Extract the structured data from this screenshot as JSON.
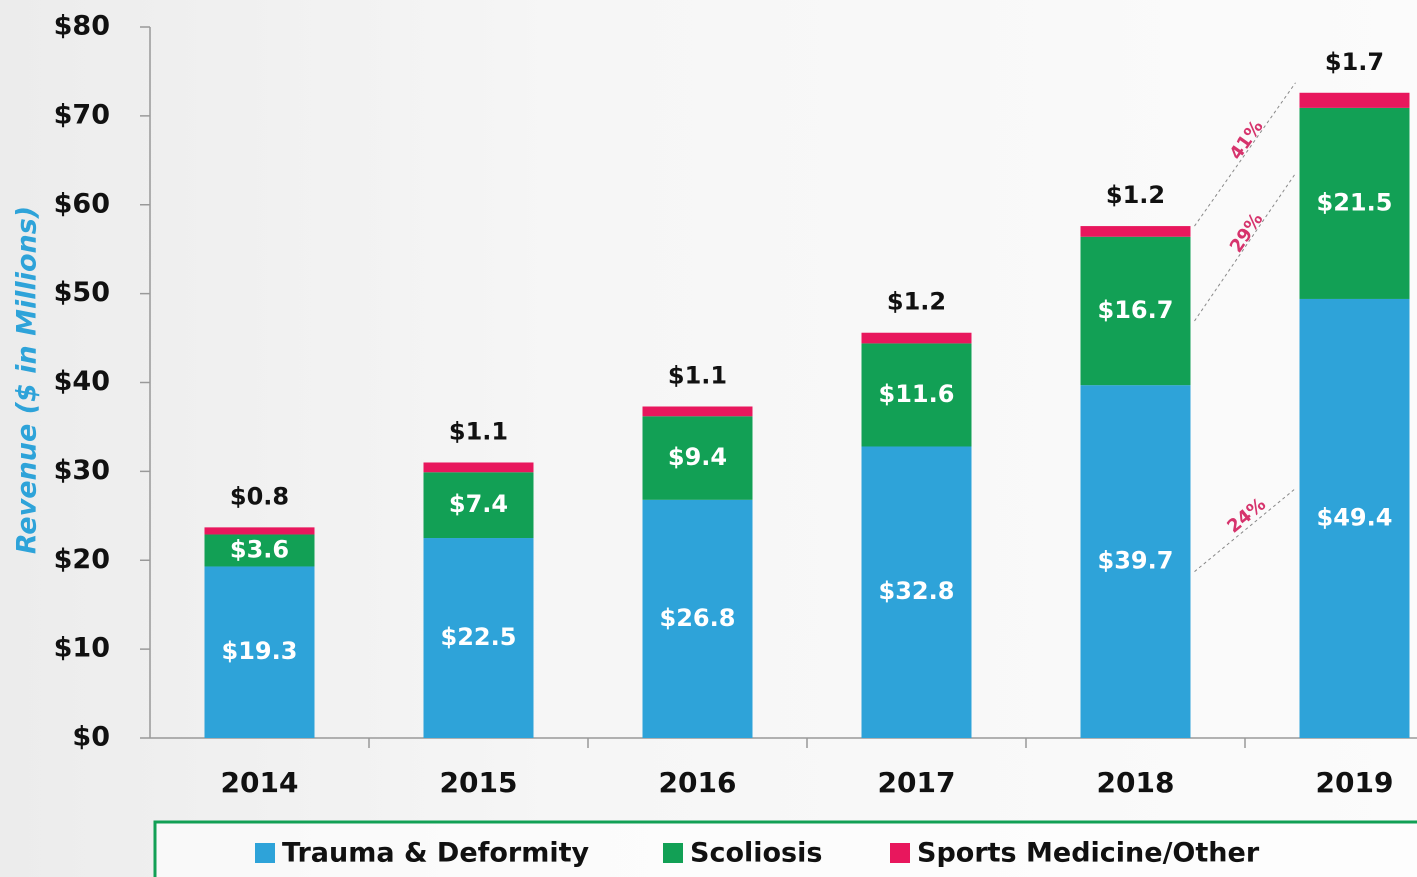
{
  "chart_data": {
    "type": "stacked_bar",
    "y_label": "Revenue  ($ in Millions)",
    "categories": [
      "2014",
      "2015",
      "2016",
      "2017",
      "2018",
      "2019"
    ],
    "series": [
      {
        "name": "Trauma & Deformity",
        "color": "#2ea3d9",
        "values": [
          19.3,
          22.5,
          26.8,
          32.8,
          39.7,
          49.4
        ],
        "value_labels": [
          "$19.3",
          "$22.5",
          "$26.8",
          "$32.8",
          "$39.7",
          "$49.4"
        ]
      },
      {
        "name": "Scoliosis",
        "color": "#12a055",
        "values": [
          3.6,
          7.4,
          9.4,
          11.6,
          16.7,
          21.5
        ],
        "value_labels": [
          "$3.6",
          "$7.4",
          "$9.4",
          "$11.6",
          "$16.7",
          "$21.5"
        ]
      },
      {
        "name": "Sports Medicine/Other",
        "color": "#e8175d",
        "values": [
          0.8,
          1.1,
          1.1,
          1.2,
          1.2,
          1.7
        ],
        "value_labels": [
          "$0.8",
          "$1.1",
          "$1.1",
          "$1.2",
          "$1.2",
          "$1.7"
        ]
      }
    ],
    "growth": {
      "values": [
        24,
        29,
        41
      ],
      "value_labels": [
        "24%",
        "29%",
        "41%"
      ],
      "color": "#d6336c"
    },
    "ylim": [
      0,
      80
    ],
    "yticks": [
      {
        "value": 0,
        "label": "$0"
      },
      {
        "value": 10,
        "label": "$10"
      },
      {
        "value": 20,
        "label": "$20"
      },
      {
        "value": 30,
        "label": "$30"
      },
      {
        "value": 40,
        "label": "$40"
      },
      {
        "value": 50,
        "label": "$50"
      },
      {
        "value": 60,
        "label": "$60"
      },
      {
        "value": 70,
        "label": "$70"
      },
      {
        "value": 80,
        "label": "$80"
      }
    ],
    "grid": false
  }
}
